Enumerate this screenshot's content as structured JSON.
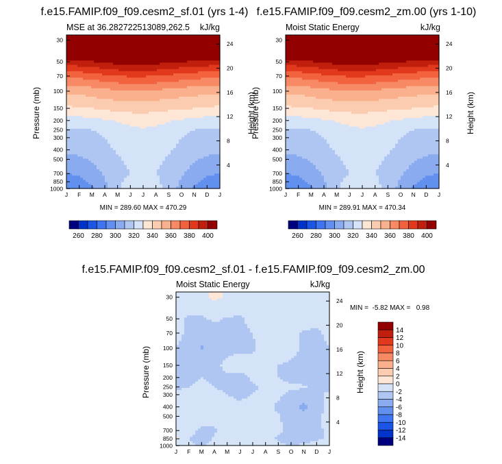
{
  "colors": {
    "levels": [
      "#00007f",
      "#0033cc",
      "#1a55e6",
      "#3f75f0",
      "#6290ee",
      "#8aabef",
      "#b0c6f2",
      "#d4e3f8",
      "#fde6d6",
      "#fcccb0",
      "#fab08c",
      "#f78a64",
      "#f2623e",
      "#e2381e",
      "#c11f0d",
      "#920000"
    ]
  },
  "chart_data": [
    {
      "type": "heatmap",
      "id": "panel-1",
      "title": "f.e15.FAMIP.f09_f09.cesm2_sf.01 (yrs 1-4)",
      "subtitle_left": "MSE at 36.282722513089,262.5",
      "subtitle_right": "kJ/kg",
      "ylabel": "Pressure (mb)",
      "y2label": "Height (km)",
      "months": [
        "J",
        "F",
        "M",
        "A",
        "M",
        "J",
        "J",
        "A",
        "S",
        "O",
        "N",
        "D",
        "J"
      ],
      "pressure_ticks": [
        "30",
        "50",
        "70",
        "100",
        "150",
        "200",
        "250",
        "300",
        "400",
        "500",
        "700",
        "850",
        "1000"
      ],
      "pressure_levels": [
        30,
        50,
        70,
        100,
        150,
        200,
        250,
        300,
        400,
        500,
        700,
        850,
        1000
      ],
      "height_ticks": [
        "24",
        "20",
        "16",
        "12",
        "8",
        "4"
      ],
      "height_km": [
        24,
        20,
        16,
        12,
        8,
        4
      ],
      "minmax": "MIN = 289.60 MAX = 470.29",
      "min": 289.6,
      "max": 470.29,
      "contour_levels": [
        250,
        260,
        270,
        280,
        290,
        300,
        310,
        320,
        330,
        340,
        350,
        360,
        370,
        380,
        390,
        400
      ],
      "colorbar_labels": [
        "260",
        "280",
        "300",
        "320",
        "340",
        "360",
        "380",
        "400"
      ],
      "values": [
        [
          470,
          470,
          470,
          470,
          470,
          470,
          470,
          470,
          470,
          470,
          470,
          470,
          470
        ],
        [
          396,
          397,
          399,
          402,
          404,
          405,
          405,
          404,
          402,
          400,
          398,
          397,
          396
        ],
        [
          372,
          373,
          375,
          378,
          380,
          381,
          381,
          380,
          378,
          376,
          374,
          373,
          372
        ],
        [
          352,
          353,
          355,
          357,
          358,
          359,
          359,
          358,
          357,
          355,
          354,
          353,
          352
        ],
        [
          338,
          339,
          340,
          342,
          343,
          344,
          344,
          343,
          342,
          341,
          340,
          339,
          338
        ],
        [
          325,
          326,
          327,
          329,
          331,
          333,
          334,
          333,
          331,
          329,
          327,
          326,
          325
        ],
        [
          319,
          319,
          320,
          322,
          325,
          328,
          329,
          328,
          325,
          322,
          320,
          319,
          319
        ],
        [
          316,
          317,
          318,
          320,
          323,
          326,
          327,
          326,
          323,
          320,
          318,
          317,
          316
        ],
        [
          312,
          313,
          315,
          318,
          321,
          324,
          325,
          324,
          321,
          318,
          315,
          313,
          312
        ],
        [
          307,
          308,
          311,
          315,
          319,
          322,
          323,
          322,
          319,
          315,
          311,
          308,
          307
        ],
        [
          300,
          302,
          306,
          311,
          317,
          320,
          321,
          320,
          317,
          311,
          306,
          302,
          300
        ],
        [
          295,
          297,
          302,
          309,
          318,
          323,
          326,
          322,
          316,
          309,
          302,
          297,
          295
        ],
        [
          290,
          292,
          298,
          307,
          318,
          326,
          330,
          325,
          315,
          307,
          298,
          292,
          290
        ]
      ]
    },
    {
      "type": "heatmap",
      "id": "panel-2",
      "title": "f.e15.FAMIP.f09_f09.cesm2_zm.00 (yrs 1-10)",
      "subtitle_left": "Moist Static Energy",
      "subtitle_right": "kJ/kg",
      "ylabel": "Pressure (mb)",
      "y2label": "Height (km)",
      "months": [
        "J",
        "F",
        "M",
        "A",
        "M",
        "J",
        "J",
        "A",
        "S",
        "O",
        "N",
        "D",
        "J"
      ],
      "pressure_ticks": [
        "30",
        "50",
        "70",
        "100",
        "150",
        "200",
        "250",
        "300",
        "400",
        "500",
        "700",
        "850",
        "1000"
      ],
      "pressure_levels": [
        30,
        50,
        70,
        100,
        150,
        200,
        250,
        300,
        400,
        500,
        700,
        850,
        1000
      ],
      "height_ticks": [
        "24",
        "20",
        "16",
        "12",
        "8",
        "4"
      ],
      "height_km": [
        24,
        20,
        16,
        12,
        8,
        4
      ],
      "minmax": "MIN = 289.91 MAX = 470.34",
      "min": 289.91,
      "max": 470.34,
      "contour_levels": [
        250,
        260,
        270,
        280,
        290,
        300,
        310,
        320,
        330,
        340,
        350,
        360,
        370,
        380,
        390,
        400
      ],
      "colorbar_labels": [
        "260",
        "280",
        "300",
        "320",
        "340",
        "360",
        "380",
        "400"
      ],
      "values": [
        [
          470,
          470,
          470,
          470,
          470,
          470,
          470,
          470,
          470,
          470,
          470,
          470,
          470
        ],
        [
          396,
          397,
          399,
          402,
          404,
          405,
          405,
          404,
          402,
          400,
          398,
          397,
          396
        ],
        [
          372,
          373,
          375,
          378,
          380,
          381,
          381,
          380,
          378,
          376,
          374,
          373,
          372
        ],
        [
          352,
          353,
          355,
          357,
          358,
          359,
          359,
          358,
          357,
          355,
          354,
          353,
          352
        ],
        [
          338,
          339,
          340,
          342,
          343,
          344,
          344,
          343,
          342,
          341,
          340,
          339,
          338
        ],
        [
          325,
          326,
          327,
          329,
          331,
          333,
          334,
          333,
          331,
          329,
          327,
          326,
          325
        ],
        [
          319,
          319,
          320,
          322,
          325,
          328,
          329,
          328,
          325,
          322,
          320,
          319,
          319
        ],
        [
          316,
          317,
          318,
          320,
          323,
          326,
          327,
          326,
          323,
          320,
          318,
          317,
          316
        ],
        [
          312,
          313,
          315,
          318,
          321,
          324,
          325,
          324,
          321,
          318,
          315,
          313,
          312
        ],
        [
          307,
          308,
          311,
          315,
          319,
          322,
          323,
          322,
          319,
          315,
          311,
          308,
          307
        ],
        [
          300,
          302,
          306,
          311,
          317,
          320,
          321,
          320,
          317,
          311,
          306,
          302,
          300
        ],
        [
          295,
          297,
          302,
          309,
          318,
          323,
          326,
          322,
          316,
          309,
          302,
          297,
          295
        ],
        [
          290,
          292,
          298,
          307,
          318,
          326,
          331,
          325,
          315,
          307,
          298,
          292,
          290
        ]
      ]
    },
    {
      "type": "heatmap",
      "id": "panel-3",
      "title": "f.e15.FAMIP.f09_f09.cesm2_sf.01 - f.e15.FAMIP.f09_f09.cesm2_zm.00",
      "subtitle_left": "Moist Static Energy",
      "subtitle_right": "kJ/kg",
      "ylabel": "Pressure (mb)",
      "y2label": "Height (km)",
      "months": [
        "J",
        "F",
        "M",
        "A",
        "M",
        "J",
        "J",
        "A",
        "S",
        "O",
        "N",
        "D",
        "J"
      ],
      "pressure_ticks": [
        "30",
        "50",
        "70",
        "100",
        "150",
        "200",
        "250",
        "300",
        "400",
        "500",
        "700",
        "850",
        "1000"
      ],
      "pressure_levels": [
        30,
        50,
        70,
        100,
        150,
        200,
        250,
        300,
        400,
        500,
        700,
        850,
        1000
      ],
      "height_ticks": [
        "24",
        "20",
        "16",
        "12",
        "8",
        "4"
      ],
      "height_km": [
        24,
        20,
        16,
        12,
        8,
        4
      ],
      "minmax": "MIN =  -5.82 MAX =   0.98",
      "min": -5.82,
      "max": 0.98,
      "contour_levels": [
        -16,
        -14,
        -12,
        -10,
        -8,
        -6,
        -4,
        -2,
        0,
        2,
        4,
        6,
        8,
        10,
        12,
        14
      ],
      "colorbar_labels": [
        "14",
        "12",
        "10",
        "8",
        "6",
        "4",
        "2",
        "0",
        "-2",
        "-4",
        "-6",
        "-8",
        "-10",
        "-12",
        "-14"
      ],
      "values": [
        [
          -0.5,
          -0.8,
          -0.6,
          0.5,
          -0.4,
          -0.5,
          -0.6,
          -0.5,
          -0.4,
          -0.6,
          -0.5,
          -0.4,
          -0.5
        ],
        [
          -1.2,
          -2.3,
          -2.2,
          -1.8,
          -2.1,
          -2.3,
          -1.5,
          -1.2,
          -0.8,
          -0.9,
          -1.1,
          -1.4,
          -1.2
        ],
        [
          -1.5,
          -2.4,
          -2.6,
          -2.5,
          -2.4,
          -2.3,
          -2.0,
          -1.6,
          -1.2,
          -1.6,
          -2.2,
          -2.4,
          -1.5
        ],
        [
          -2.1,
          -2.3,
          -4.3,
          -2.6,
          -2.4,
          -2.2,
          -2.1,
          -1.7,
          -1.5,
          -1.8,
          -2.1,
          -2.5,
          -2.1
        ],
        [
          -2.0,
          -2.2,
          -2.3,
          -2.4,
          -1.6,
          -1.5,
          -1.8,
          -1.9,
          -2.0,
          -2.1,
          -2.2,
          -2.3,
          -2.0
        ],
        [
          -2.2,
          -2.1,
          -2.0,
          -2.1,
          -2.2,
          -2.3,
          -1.9,
          -1.6,
          -2.0,
          -2.3,
          -2.4,
          -2.5,
          -2.2
        ],
        [
          -2.1,
          -2.0,
          -1.9,
          -2.0,
          -2.1,
          -2.2,
          -2.1,
          -1.9,
          -1.8,
          -1.8,
          -1.9,
          -2.2,
          -2.1
        ],
        [
          -1.9,
          -1.8,
          -1.7,
          -1.9,
          -2.0,
          -2.1,
          -2.0,
          -1.8,
          -1.8,
          -2.3,
          -2.5,
          -2.1,
          -1.9
        ],
        [
          -1.8,
          -1.7,
          -1.6,
          -1.7,
          -1.8,
          -1.9,
          -1.8,
          -1.7,
          -2.2,
          -2.8,
          -4.8,
          -2.4,
          -1.8
        ],
        [
          -1.6,
          -1.5,
          -1.5,
          -1.7,
          -1.6,
          -1.5,
          -1.4,
          -1.5,
          -1.9,
          -2.5,
          -3.0,
          -2.2,
          -1.6
        ],
        [
          -1.8,
          -1.6,
          -2.2,
          -2.1,
          -1.6,
          -1.5,
          -1.4,
          -1.6,
          -1.8,
          -2.3,
          -2.5,
          -2.2,
          -1.8
        ],
        [
          0.5,
          -2.0,
          -2.6,
          -1.9,
          -1.7,
          -1.6,
          -1.5,
          -1.7,
          -2.1,
          -2.4,
          -2.3,
          -2.1,
          -1.9
        ],
        [
          -1.5,
          -1.8,
          -2.0,
          -1.8,
          -1.6,
          -1.5,
          -1.5,
          -1.6,
          -1.8,
          -2.0,
          -1.9,
          -1.7,
          -1.5
        ]
      ]
    }
  ]
}
